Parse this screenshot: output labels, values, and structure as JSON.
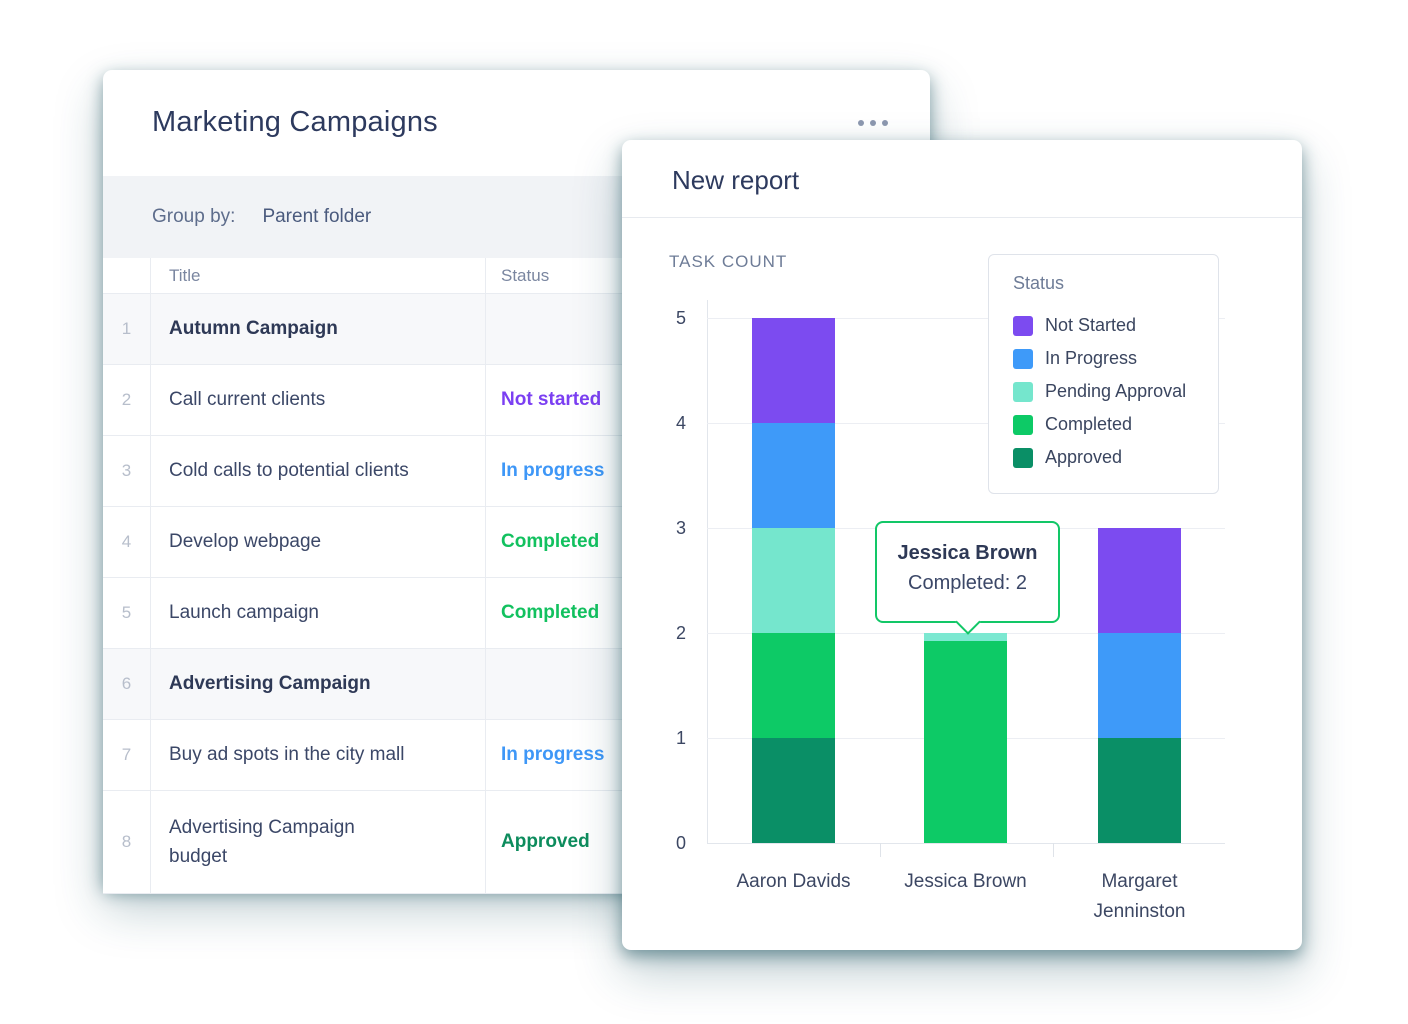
{
  "colors": {
    "card_title": "#2D3A5E",
    "status_text": {
      "Not started": "#7B3FF2",
      "In progress": "#3E97F7",
      "Completed": "#12C15F",
      "Approved": "#0D8C5D"
    }
  },
  "table_card": {
    "title": "Marketing Campaigns",
    "menu_icon": "ellipsis-horizontal",
    "group_by_label": "Group by:",
    "group_by_value": "Parent folder",
    "columns": {
      "title": "Title",
      "status": "Status"
    },
    "rows": [
      {
        "num": "1",
        "title": "Autumn Campaign",
        "status": "",
        "group": true
      },
      {
        "num": "2",
        "title": "Call current clients",
        "status": "Not started"
      },
      {
        "num": "3",
        "title": "Cold calls to potential clients",
        "status": "In progress"
      },
      {
        "num": "4",
        "title": "Develop webpage",
        "status": "Completed"
      },
      {
        "num": "5",
        "title": "Launch campaign",
        "status": "Completed"
      },
      {
        "num": "6",
        "title": "Advertising Campaign",
        "status": "",
        "group": true
      },
      {
        "num": "7",
        "title": "Buy ad spots in the city mall",
        "status": "In progress"
      },
      {
        "num": "8",
        "title": "Advertising Campaign budget",
        "status": "Approved",
        "tall": true
      }
    ]
  },
  "report_card": {
    "title": "New report",
    "tooltip": {
      "category": "Jessica Brown",
      "series": "Completed",
      "text": "Completed: 2"
    }
  },
  "chart_data": {
    "type": "bar",
    "stacked": true,
    "title": "TASK COUNT",
    "ylabel": "TASK COUNT",
    "xlabel": "",
    "categories": [
      "Aaron Davids",
      "Jessica Brown",
      "Margaret Jenninston"
    ],
    "series": [
      {
        "name": "Not Started",
        "color": "#7C4BF0",
        "values": [
          1,
          0,
          1
        ]
      },
      {
        "name": "In Progress",
        "color": "#3E9AF9",
        "values": [
          1,
          0,
          1
        ]
      },
      {
        "name": "Pending Approval",
        "color": "#75E6CD",
        "values": [
          1,
          0,
          0
        ]
      },
      {
        "name": "Completed",
        "color": "#0DCA66",
        "values": [
          1,
          2,
          0
        ]
      },
      {
        "name": "Approved",
        "color": "#0A8F66",
        "values": [
          1,
          0,
          1
        ]
      }
    ],
    "stack_order_bottom_to_top": [
      "Approved",
      "Completed",
      "Pending Approval",
      "In Progress",
      "Not Started"
    ],
    "totals": {
      "Aaron Davids": 5,
      "Jessica Brown": 2,
      "Margaret Jenninston": 3
    },
    "ylim": [
      0,
      5
    ],
    "yticks": [
      0,
      1,
      2,
      3,
      4,
      5
    ],
    "grid": true,
    "legend": {
      "title": "Status",
      "position": "top-right"
    }
  }
}
